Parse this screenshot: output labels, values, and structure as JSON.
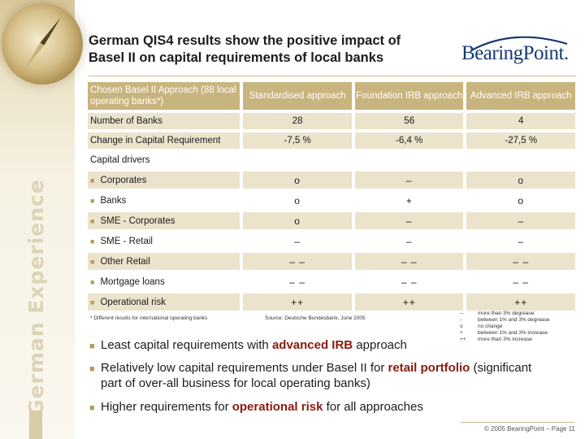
{
  "title_line1": "German QIS4 results show the positive impact of",
  "title_line2": "Basel II on capital requirements of local banks",
  "logo": "BearingPoint.",
  "side_text": "German Experience",
  "table": {
    "header": [
      "Chosen Basel II Approach (88 local operating banks*)",
      "Standardised approach",
      "Foundation IRB approach",
      "Advanced IRB approach"
    ],
    "number_of_banks": {
      "label": "Number of Banks",
      "values": [
        "28",
        "56",
        "4"
      ]
    },
    "change": {
      "label": "Change in Capital Requirement",
      "values": [
        "-7,5 %",
        "-6,4 %",
        "-27,5 %"
      ]
    },
    "drivers_label": "Capital drivers",
    "drivers": [
      {
        "label": "Corporates",
        "values": [
          "o",
          "–",
          "o"
        ]
      },
      {
        "label": "Banks",
        "values": [
          "o",
          "+",
          "o"
        ]
      },
      {
        "label": "SME - Corporates",
        "values": [
          "o",
          "–",
          "–"
        ]
      },
      {
        "label": "SME - Retail",
        "values": [
          "–",
          "–",
          "–"
        ]
      },
      {
        "label": "Other Retail",
        "values": [
          "– –",
          "– –",
          "– –"
        ]
      },
      {
        "label": "Mortgage loans",
        "values": [
          "– –",
          "– –",
          "– –"
        ]
      },
      {
        "label": "Operational risk",
        "values": [
          "++",
          "++",
          "++"
        ]
      }
    ]
  },
  "footnote_left": "* Different results for international operating banks",
  "footnote_source": "Source: Deutsche Bundesbank, June 2005",
  "legend": [
    {
      "sym": "--",
      "text": "more than 3% degrease"
    },
    {
      "sym": "-",
      "text": "between 1% and 3% degrease"
    },
    {
      "sym": "o",
      "text": "no change"
    },
    {
      "sym": "+",
      "text": "between 1% and 3% increase"
    },
    {
      "sym": "++",
      "text": "more than 3% increase"
    }
  ],
  "points": {
    "p1_pre": "Least capital requirements with ",
    "p1_hl": "advanced IRB",
    "p1_post": " approach",
    "p2_pre": "Relatively low capital requirements under Basel II for ",
    "p2_hl": "retail portfolio",
    "p2_post": " (significant part of over-all business for local operating banks)",
    "p3_pre": "Higher requirements for ",
    "p3_hl": "operational risk",
    "p3_post": " for all approaches"
  },
  "copyright": "© 2005 BearingPoint – Page 11",
  "colors": {
    "accent": "#c8b47e",
    "shade": "#ebe3cc",
    "highlight": "#8b1a0e",
    "logo": "#163a6e"
  }
}
